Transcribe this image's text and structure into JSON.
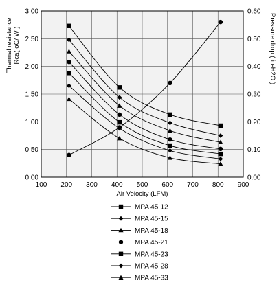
{
  "chart_data": {
    "type": "line",
    "xlabel": "Air Velocity (LFM)",
    "ylabel": "Thermal resistance Rca( oC/ W )",
    "y2label": "Pressure drop ( in-H2O )",
    "xlim": [
      100,
      900
    ],
    "ylim": [
      0,
      3
    ],
    "y2lim": [
      0,
      0.6
    ],
    "x_ticks": [
      "100",
      "200",
      "300",
      "400",
      "500",
      "600",
      "700",
      "800",
      "900"
    ],
    "y_ticks": [
      "0.00",
      "0.50",
      "1.00",
      "1.50",
      "2.00",
      "2.50",
      "3.00"
    ],
    "y2_ticks": [
      "0.00",
      "0.10",
      "0.20",
      "0.30",
      "0.40",
      "0.50",
      "0.60"
    ],
    "grid": true,
    "plot_background": "#f2f2f2",
    "legend_position": "bottom",
    "x": [
      210,
      410,
      610,
      810
    ],
    "series": [
      {
        "name": "MPA 45-12",
        "marker": "square",
        "values": [
          2.73,
          1.62,
          1.13,
          0.93
        ]
      },
      {
        "name": "MPA 45-15",
        "marker": "diamond",
        "values": [
          2.48,
          1.44,
          0.98,
          0.75
        ]
      },
      {
        "name": "MPA 45-18",
        "marker": "triangle",
        "values": [
          2.27,
          1.29,
          0.84,
          0.63
        ]
      },
      {
        "name": "MPA 45-21",
        "marker": "circle",
        "values": [
          2.08,
          1.13,
          0.68,
          0.51
        ]
      },
      {
        "name": "MPA 45-23",
        "marker": "square",
        "values": [
          1.88,
          0.99,
          0.57,
          0.42
        ]
      },
      {
        "name": "MPA 45-28",
        "marker": "diamond",
        "values": [
          1.65,
          0.88,
          0.48,
          0.33
        ]
      },
      {
        "name": "MPA 45-33",
        "marker": "triangle",
        "values": [
          1.41,
          0.7,
          0.35,
          0.24
        ]
      }
    ],
    "pressure_drop_series": {
      "axis": "right",
      "marker": "circle",
      "values": [
        0.08,
        0.18,
        0.34,
        0.56
      ]
    }
  }
}
